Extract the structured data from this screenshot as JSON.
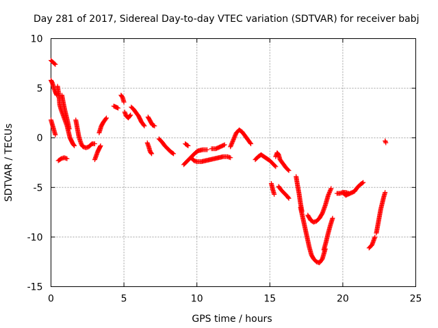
{
  "chart_data": {
    "type": "scatter",
    "title": "Day 281 of 2017, Sidereal Day-to-day VTEC variation (SDTVAR) for receiver babj",
    "xlabel": "GPS time / hours",
    "ylabel": "SDTVAR / TECUs",
    "xlim": [
      0,
      25
    ],
    "ylim": [
      -15,
      10
    ],
    "xticks": [
      0,
      5,
      10,
      15,
      20,
      25
    ],
    "yticks": [
      -15,
      -10,
      -5,
      0,
      5,
      10
    ],
    "xtick_labels": [
      "0",
      "5",
      "10",
      "15",
      "20",
      "25"
    ],
    "ytick_labels": [
      "-15",
      "-10",
      "-5",
      "0",
      "5",
      "10"
    ],
    "grid": true,
    "marker": "+",
    "color": "#ff0000",
    "series": [
      {
        "name": "SDTVAR",
        "segments": [
          [
            [
              0.0,
              7.8
            ],
            [
              0.15,
              7.6
            ],
            [
              0.3,
              7.4
            ]
          ],
          [
            [
              0.0,
              5.8
            ],
            [
              0.1,
              5.5
            ],
            [
              0.2,
              5.0
            ],
            [
              0.3,
              4.6
            ],
            [
              0.4,
              4.3
            ]
          ],
          [
            [
              0.0,
              1.8
            ],
            [
              0.1,
              1.3
            ],
            [
              0.2,
              0.8
            ],
            [
              0.3,
              0.3
            ]
          ],
          [
            [
              0.45,
              5.2
            ],
            [
              0.55,
              4.2
            ],
            [
              0.6,
              3.3
            ],
            [
              0.7,
              2.8
            ],
            [
              0.8,
              2.4
            ],
            [
              0.9,
              2.0
            ],
            [
              1.0,
              1.6
            ],
            [
              1.1,
              1.2
            ],
            [
              1.2,
              0.6
            ],
            [
              1.3,
              0.0
            ],
            [
              1.4,
              -0.3
            ],
            [
              1.5,
              -0.6
            ],
            [
              1.6,
              -0.8
            ]
          ],
          [
            [
              0.75,
              4.3
            ],
            [
              0.85,
              3.5
            ],
            [
              0.95,
              2.8
            ],
            [
              1.05,
              2.2
            ],
            [
              1.15,
              1.6
            ],
            [
              1.25,
              0.9
            ]
          ],
          [
            [
              0.5,
              -2.3
            ],
            [
              0.7,
              -2.1
            ],
            [
              0.9,
              -2.0
            ],
            [
              1.1,
              -2.1
            ]
          ],
          [
            [
              1.7,
              1.8
            ],
            [
              1.8,
              1.0
            ],
            [
              1.9,
              0.2
            ],
            [
              2.0,
              -0.3
            ],
            [
              2.1,
              -0.7
            ],
            [
              2.2,
              -0.9
            ],
            [
              2.4,
              -1.0
            ],
            [
              2.6,
              -0.9
            ],
            [
              2.8,
              -0.6
            ],
            [
              3.0,
              -0.6
            ]
          ],
          [
            [
              3.0,
              -2.2
            ],
            [
              3.1,
              -1.8
            ],
            [
              3.2,
              -1.4
            ],
            [
              3.3,
              -1.1
            ],
            [
              3.4,
              -0.8
            ]
          ],
          [
            [
              3.3,
              0.5
            ],
            [
              3.45,
              1.2
            ],
            [
              3.6,
              1.6
            ],
            [
              3.8,
              2.0
            ]
          ],
          [
            [
              4.3,
              3.2
            ],
            [
              4.45,
              3.1
            ],
            [
              4.6,
              3.0
            ]
          ],
          [
            [
              4.8,
              4.3
            ],
            [
              4.9,
              4.1
            ],
            [
              5.0,
              3.6
            ]
          ],
          [
            [
              5.05,
              2.6
            ],
            [
              5.15,
              2.2
            ],
            [
              5.3,
              2.0
            ],
            [
              5.45,
              2.3
            ]
          ],
          [
            [
              5.5,
              3.1
            ],
            [
              5.65,
              2.9
            ],
            [
              5.8,
              2.6
            ],
            [
              6.0,
              2.2
            ],
            [
              6.2,
              1.6
            ],
            [
              6.4,
              1.2
            ]
          ],
          [
            [
              6.65,
              2.1
            ],
            [
              6.8,
              1.7
            ],
            [
              6.95,
              1.3
            ],
            [
              7.1,
              1.2
            ]
          ],
          [
            [
              6.6,
              -0.5
            ],
            [
              6.7,
              -0.9
            ],
            [
              6.8,
              -1.4
            ],
            [
              6.9,
              -1.6
            ]
          ],
          [
            [
              7.4,
              -0.1
            ],
            [
              7.6,
              -0.4
            ],
            [
              7.8,
              -0.8
            ],
            [
              8.0,
              -1.1
            ],
            [
              8.2,
              -1.4
            ],
            [
              8.4,
              -1.6
            ]
          ],
          [
            [
              9.1,
              -2.7
            ],
            [
              9.3,
              -2.4
            ],
            [
              9.5,
              -2.1
            ],
            [
              9.7,
              -1.8
            ],
            [
              9.9,
              -1.5
            ],
            [
              10.1,
              -1.3
            ],
            [
              10.4,
              -1.2
            ],
            [
              10.7,
              -1.2
            ]
          ],
          [
            [
              9.2,
              -0.6
            ],
            [
              9.4,
              -0.8
            ]
          ],
          [
            [
              9.6,
              -2.0
            ],
            [
              9.8,
              -2.3
            ],
            [
              10.0,
              -2.4
            ],
            [
              10.3,
              -2.4
            ],
            [
              10.6,
              -2.3
            ],
            [
              10.9,
              -2.2
            ],
            [
              11.2,
              -2.1
            ],
            [
              11.5,
              -2.0
            ],
            [
              11.8,
              -1.9
            ],
            [
              12.1,
              -1.9
            ],
            [
              12.3,
              -2.0
            ]
          ],
          [
            [
              11.0,
              -1.1
            ],
            [
              11.3,
              -1.1
            ],
            [
              11.6,
              -0.9
            ],
            [
              11.9,
              -0.7
            ]
          ],
          [
            [
              12.3,
              -0.9
            ],
            [
              12.5,
              -0.2
            ],
            [
              12.7,
              0.5
            ],
            [
              12.9,
              0.8
            ],
            [
              13.1,
              0.6
            ],
            [
              13.3,
              0.2
            ],
            [
              13.5,
              -0.2
            ],
            [
              13.7,
              -0.6
            ]
          ],
          [
            [
              14.0,
              -2.2
            ],
            [
              14.2,
              -1.9
            ],
            [
              14.4,
              -1.7
            ],
            [
              14.6,
              -1.9
            ],
            [
              14.8,
              -2.1
            ],
            [
              15.0,
              -2.3
            ],
            [
              15.2,
              -2.6
            ],
            [
              15.4,
              -2.9
            ]
          ],
          [
            [
              15.4,
              -1.9
            ],
            [
              15.5,
              -1.5
            ],
            [
              15.6,
              -1.7
            ],
            [
              15.7,
              -2.2
            ],
            [
              15.9,
              -2.6
            ],
            [
              16.1,
              -3.0
            ],
            [
              16.3,
              -3.3
            ]
          ],
          [
            [
              15.1,
              -4.6
            ],
            [
              15.2,
              -5.2
            ],
            [
              15.3,
              -5.7
            ]
          ],
          [
            [
              15.6,
              -4.9
            ],
            [
              15.8,
              -5.3
            ],
            [
              16.0,
              -5.6
            ],
            [
              16.2,
              -5.9
            ],
            [
              16.3,
              -6.1
            ]
          ],
          [
            [
              16.8,
              -3.9
            ],
            [
              16.9,
              -4.8
            ],
            [
              17.0,
              -5.6
            ],
            [
              17.1,
              -6.6
            ],
            [
              17.2,
              -7.4
            ]
          ],
          [
            [
              17.1,
              -7.0
            ],
            [
              17.25,
              -8.0
            ],
            [
              17.4,
              -9.0
            ],
            [
              17.55,
              -10.0
            ],
            [
              17.7,
              -11.0
            ],
            [
              17.85,
              -11.8
            ],
            [
              18.0,
              -12.2
            ],
            [
              18.2,
              -12.5
            ],
            [
              18.4,
              -12.6
            ],
            [
              18.6,
              -12.2
            ],
            [
              18.8,
              -11.2
            ]
          ],
          [
            [
              17.6,
              -7.8
            ],
            [
              17.8,
              -8.3
            ],
            [
              18.0,
              -8.5
            ],
            [
              18.2,
              -8.4
            ],
            [
              18.4,
              -8.1
            ],
            [
              18.6,
              -7.6
            ],
            [
              18.8,
              -6.8
            ],
            [
              19.0,
              -5.8
            ],
            [
              19.2,
              -5.1
            ]
          ],
          [
            [
              18.7,
              -11.3
            ],
            [
              18.85,
              -10.5
            ],
            [
              19.0,
              -9.6
            ],
            [
              19.15,
              -8.8
            ],
            [
              19.3,
              -8.1
            ]
          ],
          [
            [
              19.6,
              -5.6
            ],
            [
              19.8,
              -5.6
            ],
            [
              20.0,
              -5.5
            ],
            [
              20.2,
              -5.5
            ],
            [
              20.4,
              -5.6
            ]
          ],
          [
            [
              20.0,
              -5.5
            ],
            [
              20.2,
              -5.8
            ],
            [
              20.5,
              -5.6
            ],
            [
              20.8,
              -5.4
            ],
            [
              21.0,
              -5.0
            ],
            [
              21.2,
              -4.7
            ],
            [
              21.4,
              -4.5
            ]
          ],
          [
            [
              21.8,
              -11.1
            ],
            [
              22.0,
              -10.8
            ],
            [
              22.1,
              -10.4
            ],
            [
              22.2,
              -10.0
            ]
          ],
          [
            [
              22.3,
              -9.6
            ],
            [
              22.4,
              -8.8
            ],
            [
              22.5,
              -8.0
            ],
            [
              22.6,
              -7.2
            ],
            [
              22.7,
              -6.6
            ],
            [
              22.8,
              -6.0
            ],
            [
              22.9,
              -5.5
            ]
          ],
          [
            [
              22.9,
              -0.3
            ],
            [
              22.95,
              -0.5
            ]
          ]
        ]
      }
    ]
  }
}
